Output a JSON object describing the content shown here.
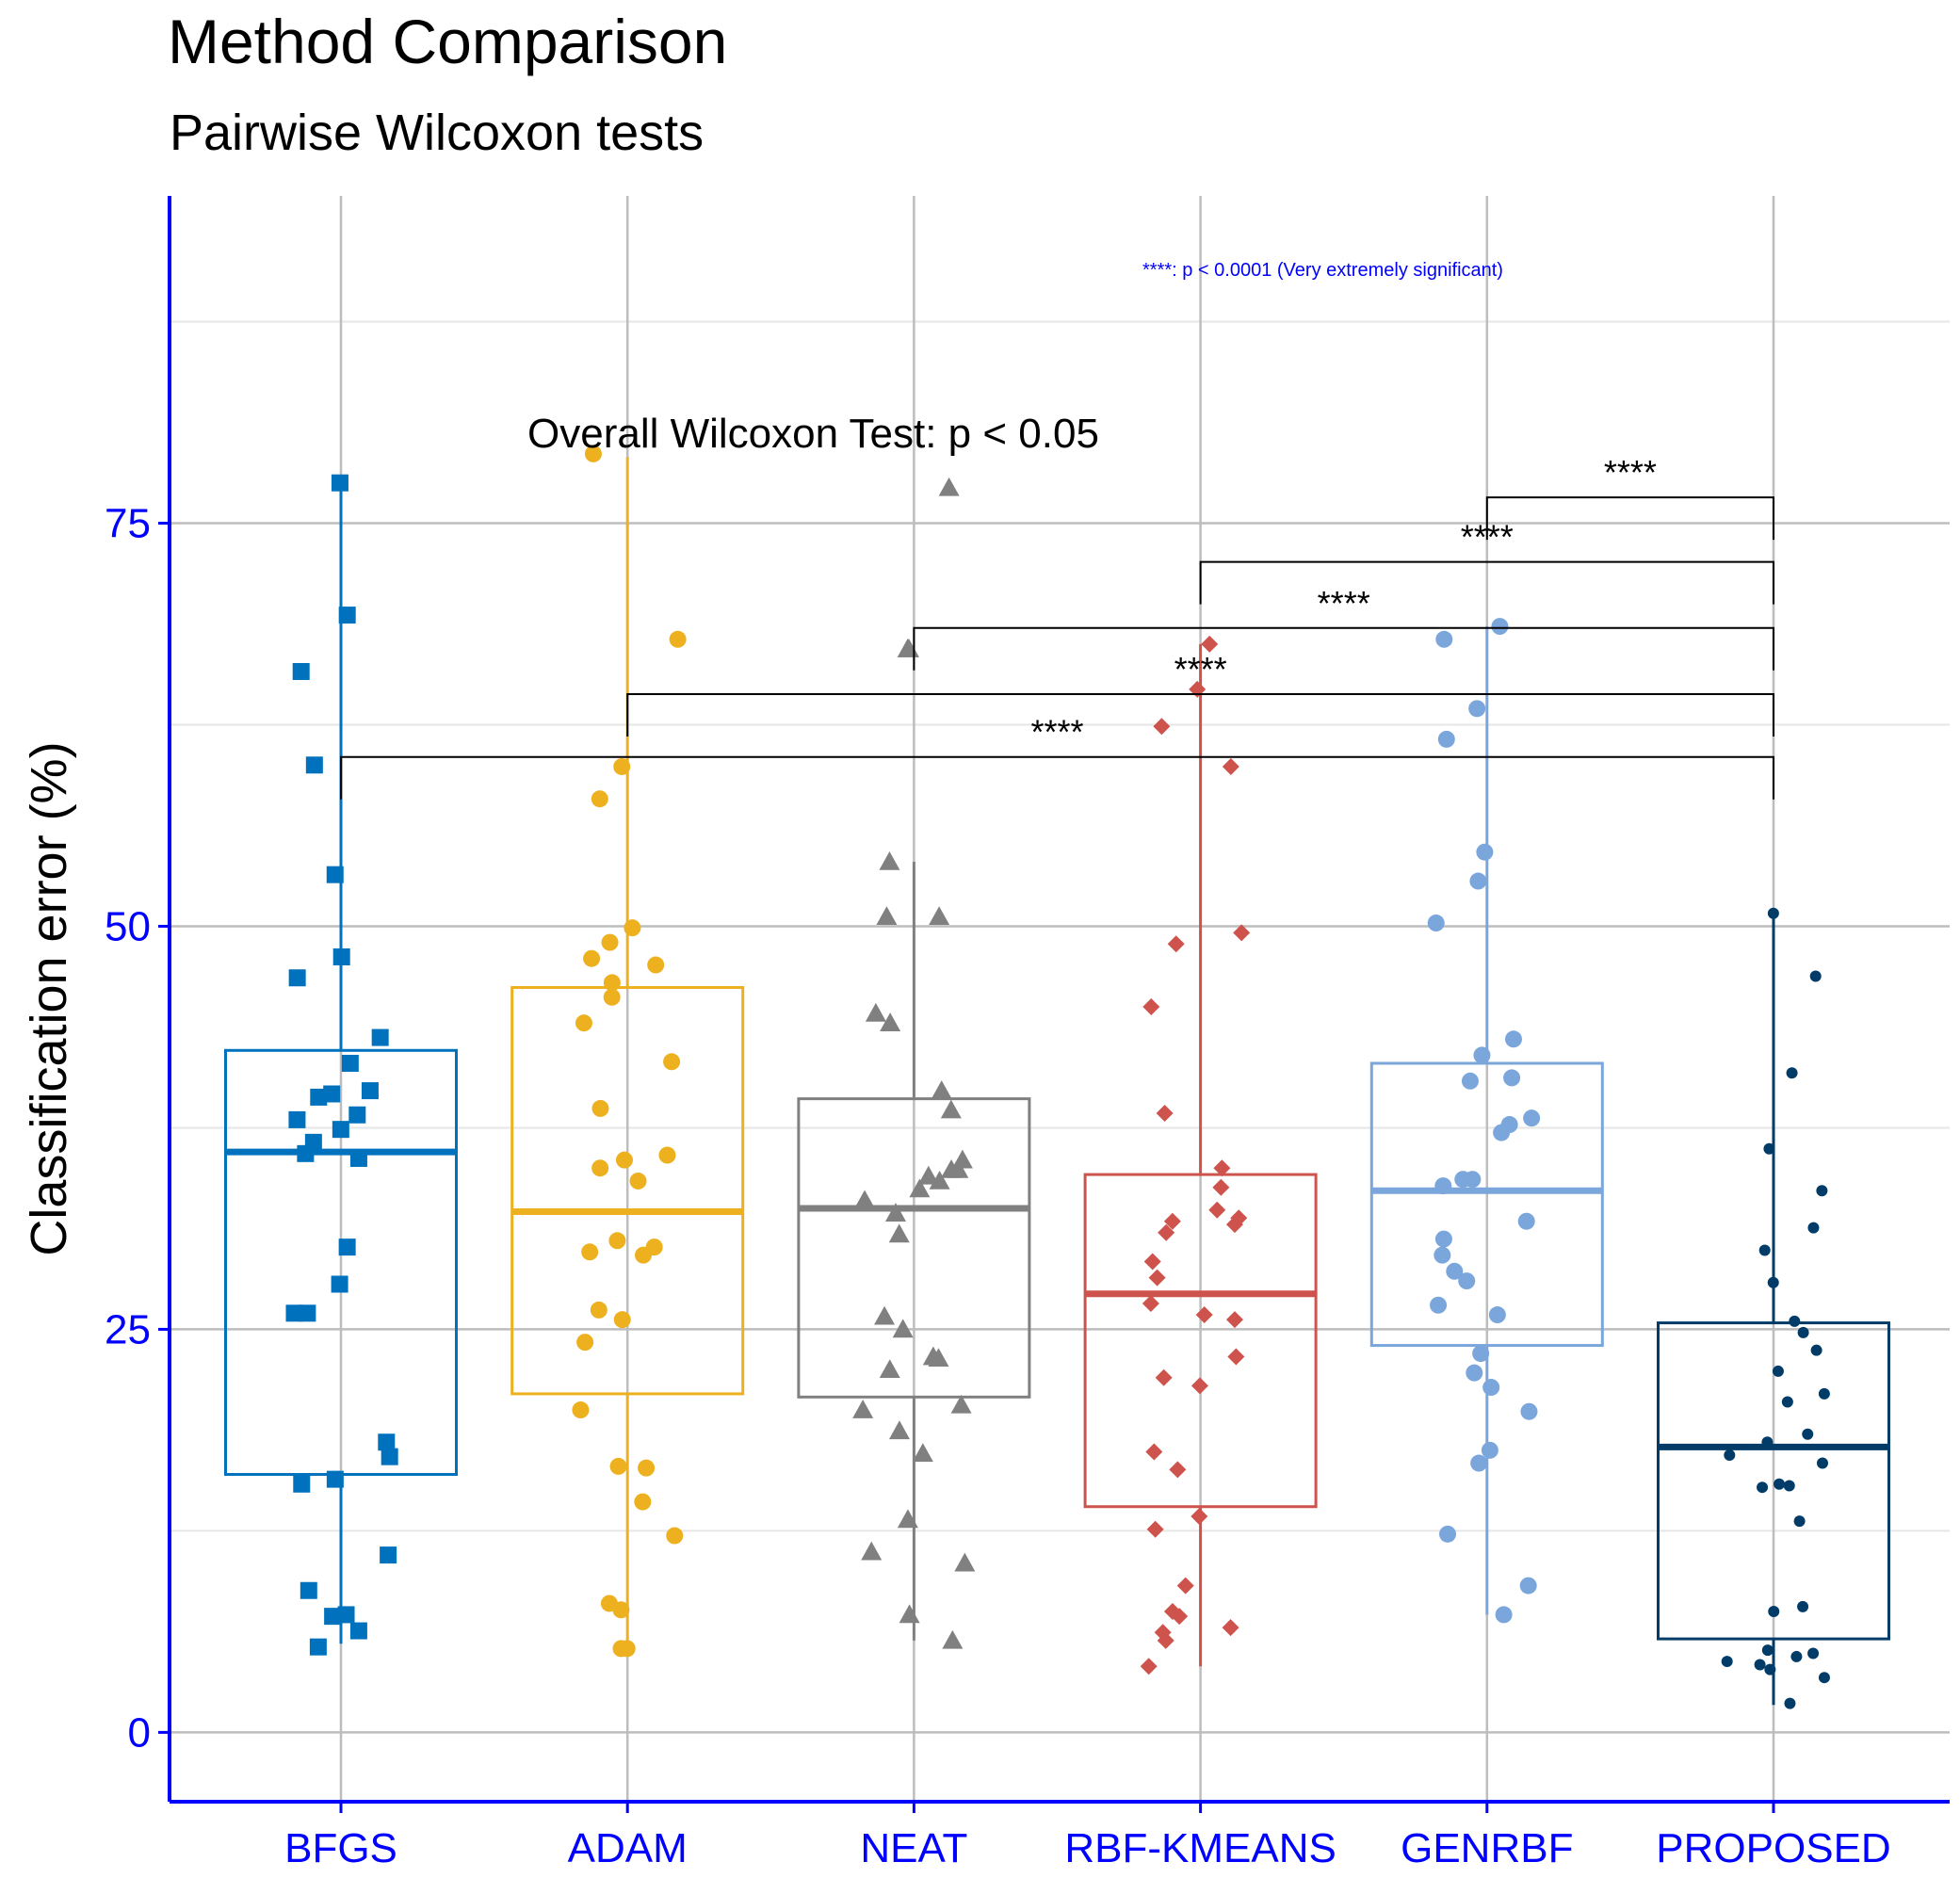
{
  "chart_data": {
    "type": "boxplot",
    "title": "Method Comparison",
    "subtitle": "Pairwise Wilcoxon tests",
    "xlabel": "",
    "ylabel": "Classification error (%)",
    "ylim": [
      -4.3,
      95.3
    ],
    "yticks": [
      0,
      25,
      50,
      75
    ],
    "categories": [
      "BFGS",
      "ADAM",
      "NEAT",
      "RBF-KMEANS",
      "GENRBF",
      "PROPOSED"
    ],
    "colors": [
      "#0072BD",
      "#EDB120",
      "#808080",
      "#CD534C",
      "#7AA6DC",
      "#003C67"
    ],
    "shapes": [
      "square",
      "circle",
      "triangle",
      "diamond",
      "circle",
      "circle"
    ],
    "boxes": [
      {
        "name": "BFGS",
        "min": 5.5,
        "q1": 16.0,
        "median": 36.0,
        "q3": 42.3,
        "max": 77.6
      },
      {
        "name": "ADAM",
        "min": 5.2,
        "q1": 21.0,
        "median": 32.3,
        "q3": 46.2,
        "max": 79.1
      },
      {
        "name": "NEAT",
        "min": 5.7,
        "q1": 20.8,
        "median": 32.5,
        "q3": 39.3,
        "max": 54.0
      },
      {
        "name": "RBF-KMEANS",
        "min": 4.1,
        "q1": 14.0,
        "median": 27.2,
        "q3": 34.6,
        "max": 67.5
      },
      {
        "name": "GENRBF",
        "min": 7.3,
        "q1": 24.0,
        "median": 33.6,
        "q3": 41.5,
        "max": 68.6
      },
      {
        "name": "PROPOSED",
        "min": 1.7,
        "q1": 5.8,
        "median": 17.7,
        "q3": 25.4,
        "max": 50.8
      }
    ],
    "points": [
      {
        "name": "BFGS",
        "values": [
          77.5,
          69.3,
          65.8,
          60.0,
          53.2,
          48.1,
          46.8,
          43.1,
          41.5,
          39.6,
          39.4,
          39.8,
          38.3,
          38.0,
          37.4,
          36.6,
          35.6,
          35.9,
          30.1,
          27.8,
          26.0,
          26.0,
          18.0,
          17.1,
          15.4,
          15.7,
          11.0,
          8.8,
          7.2,
          7.3,
          6.3,
          5.3
        ]
      },
      {
        "name": "ADAM",
        "values": [
          79.3,
          67.8,
          59.9,
          57.9,
          49.9,
          49.0,
          48.0,
          47.6,
          46.5,
          45.6,
          44.0,
          41.6,
          38.7,
          35.8,
          35.5,
          35.0,
          34.2,
          30.5,
          30.1,
          29.6,
          29.8,
          26.2,
          25.6,
          24.2,
          20.0,
          16.5,
          16.4,
          14.3,
          12.2,
          8.0,
          7.6,
          5.2,
          5.2
        ]
      },
      {
        "name": "NEAT",
        "values": [
          77.2,
          67.2,
          67.2,
          54.0,
          50.6,
          50.6,
          44.6,
          44.0,
          39.8,
          38.6,
          35.5,
          34.9,
          34.9,
          34.2,
          34.5,
          33.7,
          33.0,
          32.2,
          30.9,
          25.8,
          25.0,
          23.3,
          23.2,
          22.5,
          20.3,
          20.0,
          18.7,
          17.3,
          13.2,
          11.2,
          10.5,
          7.3,
          5.7
        ]
      },
      {
        "name": "RBF-KMEANS",
        "values": [
          67.5,
          64.7,
          62.4,
          59.9,
          49.6,
          48.9,
          45.0,
          38.4,
          35.0,
          33.8,
          32.4,
          31.9,
          31.7,
          31.5,
          31.0,
          29.2,
          28.2,
          26.6,
          25.9,
          25.6,
          23.3,
          22.0,
          21.5,
          17.4,
          16.3,
          13.4,
          12.6,
          9.1,
          7.5,
          7.2,
          6.5,
          6.2,
          5.7,
          4.1
        ]
      },
      {
        "name": "GENRBF",
        "values": [
          68.6,
          67.8,
          63.5,
          61.6,
          54.6,
          52.8,
          50.2,
          43.0,
          42.0,
          40.6,
          40.4,
          38.1,
          37.7,
          37.2,
          34.3,
          34.3,
          33.9,
          31.7,
          30.6,
          29.6,
          28.6,
          28.0,
          26.5,
          25.9,
          23.5,
          22.3,
          21.4,
          19.9,
          17.5,
          16.7,
          12.3,
          9.1,
          7.3
        ]
      },
      {
        "name": "PROPOSED",
        "values": [
          50.8,
          46.9,
          40.9,
          36.2,
          33.6,
          31.3,
          29.9,
          27.9,
          25.5,
          24.8,
          23.7,
          22.4,
          21.0,
          20.5,
          18.5,
          18.0,
          17.2,
          16.7,
          15.4,
          15.3,
          15.2,
          13.1,
          7.8,
          7.5,
          5.1,
          4.9,
          4.7,
          4.4,
          4.2,
          3.9,
          3.4,
          1.8
        ]
      }
    ],
    "comparisons": [
      {
        "group1": "BFGS",
        "group2": "PROPOSED",
        "label": "****",
        "y": 60.5
      },
      {
        "group1": "ADAM",
        "group2": "PROPOSED",
        "label": "****",
        "y": 64.4
      },
      {
        "group1": "NEAT",
        "group2": "PROPOSED",
        "label": "****",
        "y": 68.5
      },
      {
        "group1": "RBF-KMEANS",
        "group2": "PROPOSED",
        "label": "****",
        "y": 72.6
      },
      {
        "group1": "GENRBF",
        "group2": "PROPOSED",
        "label": "****",
        "y": 76.6
      }
    ],
    "annotations": {
      "overall": "Overall Wilcoxon Test: p < 0.05",
      "legend_note": "****: p < 0.0001 (Very extremely significant)"
    },
    "grid": true,
    "axis_color": "#0000FF",
    "tick_label_color": "#0000FF"
  }
}
